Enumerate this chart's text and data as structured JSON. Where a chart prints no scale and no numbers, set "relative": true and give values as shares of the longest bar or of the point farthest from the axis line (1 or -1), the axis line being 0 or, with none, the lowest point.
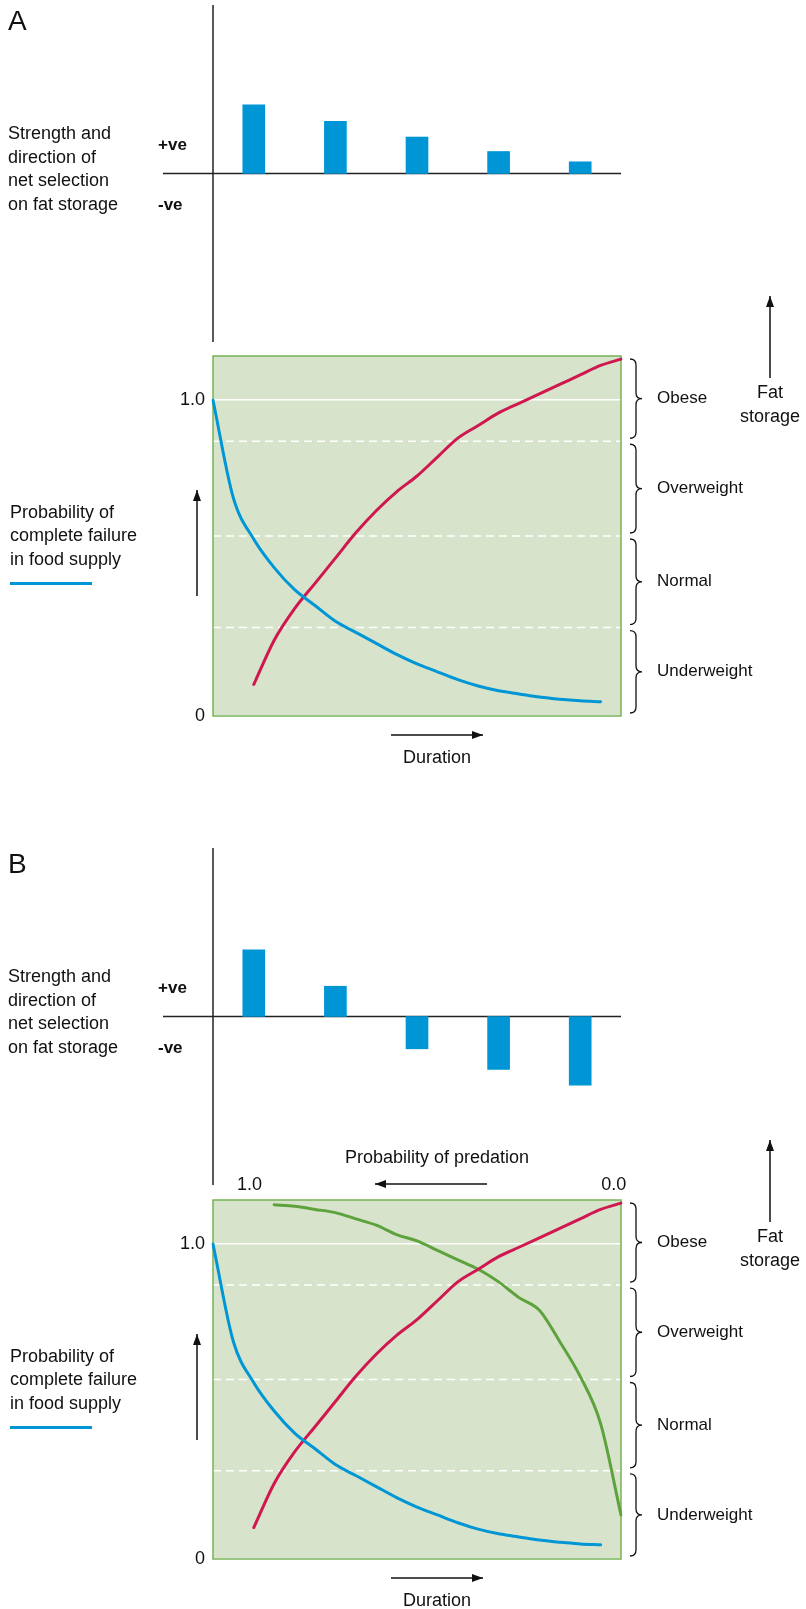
{
  "chart_data": [
    {
      "type": "bar",
      "title": "A",
      "ylabel": "Strength and direction of net selection on fat storage",
      "categories": [
        null,
        null,
        null,
        null,
        null
      ],
      "values": [
        1,
        0.76,
        0.53,
        0.32,
        0.17
      ],
      "color": "#0096d6",
      "relative": true,
      "annotations": [
        "+ve",
        "-ve"
      ]
    },
    {
      "type": "line",
      "categories": [
        null,
        null,
        null,
        null,
        null,
        null,
        null,
        null,
        null,
        null,
        null,
        null,
        null,
        null,
        null,
        null,
        null,
        null,
        null,
        null,
        null
      ],
      "series": [
        {
          "name": "Probability of complete failure in food supply",
          "color": "#0096d6",
          "values": [
            1.0,
            0.69,
            0.56,
            0.47,
            0.4,
            0.35,
            0.3,
            0.265,
            0.23,
            0.195,
            0.165,
            0.14,
            0.115,
            0.095,
            0.08,
            0.07,
            0.06,
            0.053,
            0.048,
            0.045,
            null
          ]
        },
        {
          "color": "#d0174f",
          "values": [
            null,
            null,
            0.1,
            0.24,
            0.34,
            0.42,
            0.5,
            0.58,
            0.65,
            0.71,
            0.76,
            0.82,
            0.88,
            0.92,
            0.96,
            0.99,
            1.02,
            1.05,
            1.08,
            1.11,
            1.13
          ]
        }
      ],
      "ylim": [
        0,
        1.14
      ],
      "yticks": [
        0,
        {
          "value": 1,
          "label": "1.0"
        }
      ],
      "grid": "y",
      "tick_labels": "y",
      "xlabel": "Duration",
      "legend": "left",
      "ref_lines": [
        {
          "axis": "y",
          "value": 0.87,
          "color": "#ffffff",
          "line_style": "dashed"
        },
        {
          "axis": "y",
          "value": 0.57,
          "color": "#ffffff",
          "line_style": "dashed"
        },
        {
          "axis": "y",
          "value": 0.28,
          "color": "#ffffff",
          "line_style": "dashed"
        }
      ],
      "annotations": [
        "Obese",
        "Overweight",
        "Normal",
        "Underweight",
        "Fat storage"
      ]
    },
    {
      "type": "bar",
      "title": "B",
      "ylabel": "Strength and direction of net selection on fat storage",
      "categories": [
        null,
        null,
        null,
        null,
        null
      ],
      "values": [
        0.97,
        0.44,
        -0.47,
        -0.77,
        -1
      ],
      "color": "#0096d6",
      "relative": true,
      "annotations": [
        "+ve",
        "-ve"
      ]
    },
    {
      "type": "line",
      "categories": [
        null,
        null,
        null,
        null,
        null,
        null,
        null,
        null,
        null,
        null,
        null,
        null,
        null,
        null,
        null,
        null,
        null,
        null,
        null,
        null,
        null
      ],
      "series": [
        {
          "name": "Probability of complete failure in food supply",
          "color": "#0096d6",
          "values": [
            1.0,
            0.69,
            0.56,
            0.47,
            0.4,
            0.35,
            0.3,
            0.265,
            0.23,
            0.195,
            0.165,
            0.14,
            0.115,
            0.095,
            0.08,
            0.07,
            0.06,
            0.053,
            0.048,
            0.045,
            null
          ]
        },
        {
          "color": "#d0174f",
          "values": [
            null,
            null,
            0.1,
            0.24,
            0.34,
            0.42,
            0.5,
            0.58,
            0.65,
            0.71,
            0.76,
            0.82,
            0.88,
            0.92,
            0.96,
            0.99,
            1.02,
            1.05,
            1.08,
            1.11,
            1.13
          ]
        },
        {
          "color": "#5ea23d",
          "values": [
            null,
            null,
            null,
            1.125,
            1.12,
            1.11,
            1.1,
            1.08,
            1.06,
            1.03,
            1.01,
            0.98,
            0.95,
            0.92,
            0.88,
            0.83,
            0.79,
            0.69,
            0.58,
            0.43,
            0.14
          ]
        }
      ],
      "ylim": [
        0,
        1.14
      ],
      "yticks": [
        0,
        {
          "value": 1,
          "label": "1.0"
        }
      ],
      "grid": "y",
      "tick_labels": "y",
      "xlabel": "Duration",
      "legend": "left",
      "x2lim": [
        1.1,
        -0.02
      ],
      "x2ticks": [
        {
          "value": 1,
          "label": "1.0"
        },
        {
          "value": 0,
          "label": "0.0"
        }
      ],
      "x2label": "Probability of predation",
      "ref_lines": [
        {
          "axis": "y",
          "value": 0.87,
          "color": "#ffffff",
          "line_style": "dashed"
        },
        {
          "axis": "y",
          "value": 0.57,
          "color": "#ffffff",
          "line_style": "dashed"
        },
        {
          "axis": "y",
          "value": 0.28,
          "color": "#ffffff",
          "line_style": "dashed"
        }
      ],
      "annotations": [
        "Obese",
        "Overweight",
        "Normal",
        "Underweight",
        "Fat storage"
      ]
    }
  ]
}
